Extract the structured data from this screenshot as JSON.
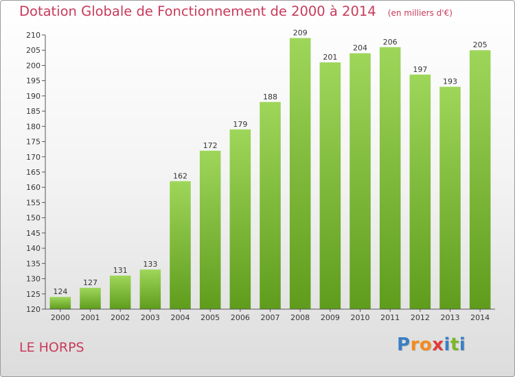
{
  "title": "Dotation Globale de Fonctionnement de 2000 à 2014",
  "unit_note": "(en milliers d'€)",
  "commune": "LE HORPS",
  "logo": {
    "letters": [
      {
        "ch": "P",
        "color": "#3a7fc4"
      },
      {
        "ch": "r",
        "color": "#f28b1e"
      },
      {
        "ch": "o",
        "color": "#f28b1e"
      },
      {
        "ch": "x",
        "color": "#e23a3a"
      },
      {
        "ch": "i",
        "color": "#3a7fc4"
      },
      {
        "ch": "t",
        "color": "#7ab829"
      },
      {
        "ch": "i",
        "color": "#3a7fc4"
      }
    ]
  },
  "colors": {
    "title": "#c83a5a",
    "bar_light": "#9ed65a",
    "bar_dark": "#5f9c1c"
  },
  "chart_data": {
    "type": "bar",
    "title": "Dotation Globale de Fonctionnement de 2000 à 2014",
    "subtitle": "(en milliers d'€)",
    "xlabel": "",
    "ylabel": "",
    "categories": [
      "2000",
      "2001",
      "2002",
      "2003",
      "2004",
      "2005",
      "2006",
      "2007",
      "2008",
      "2009",
      "2010",
      "2011",
      "2012",
      "2013",
      "2014"
    ],
    "values": [
      124,
      127,
      131,
      133,
      162,
      172,
      179,
      188,
      209,
      201,
      204,
      206,
      197,
      193,
      205
    ],
    "ylim": [
      120,
      210
    ],
    "ytick_step": 5,
    "grid": false,
    "legend": "none"
  }
}
